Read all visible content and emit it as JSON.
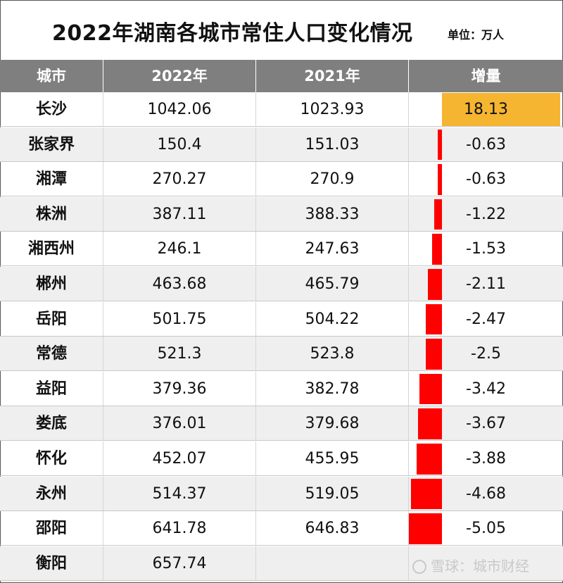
{
  "title": "2022年湖南各城市常住人口变化情况",
  "unit": "单位：万人",
  "watermark": "雪球：城市财经",
  "colors": {
    "header_bg": "#7f7f7f",
    "positive_bar": "#f5b531",
    "negative_bar": "#ff0000"
  },
  "chart_data": {
    "type": "table",
    "columns": [
      "城市",
      "2022年",
      "2021年",
      "增量"
    ],
    "rows": [
      {
        "city": "长沙",
        "y2022": "1042.06",
        "y2021": "1023.93",
        "change": "18.13"
      },
      {
        "city": "张家界",
        "y2022": "150.4",
        "y2021": "151.03",
        "change": "-0.63"
      },
      {
        "city": "湘潭",
        "y2022": "270.27",
        "y2021": "270.9",
        "change": "-0.63"
      },
      {
        "city": "株洲",
        "y2022": "387.11",
        "y2021": "388.33",
        "change": "-1.22"
      },
      {
        "city": "湘西州",
        "y2022": "246.1",
        "y2021": "247.63",
        "change": "-1.53"
      },
      {
        "city": "郴州",
        "y2022": "463.68",
        "y2021": "465.79",
        "change": "-2.11"
      },
      {
        "city": "岳阳",
        "y2022": "501.75",
        "y2021": "504.22",
        "change": "-2.47"
      },
      {
        "city": "常德",
        "y2022": "521.3",
        "y2021": "523.8",
        "change": "-2.5"
      },
      {
        "city": "益阳",
        "y2022": "379.36",
        "y2021": "382.78",
        "change": "-3.42"
      },
      {
        "city": "娄底",
        "y2022": "376.01",
        "y2021": "379.68",
        "change": "-3.67"
      },
      {
        "city": "怀化",
        "y2022": "452.07",
        "y2021": "455.95",
        "change": "-3.88"
      },
      {
        "city": "永州",
        "y2022": "514.37",
        "y2021": "519.05",
        "change": "-4.68"
      },
      {
        "city": "邵阳",
        "y2022": "641.78",
        "y2021": "646.83",
        "change": "-5.05"
      },
      {
        "city": "衡阳",
        "y2022": "657.74",
        "y2021": "",
        "change": ""
      }
    ]
  }
}
